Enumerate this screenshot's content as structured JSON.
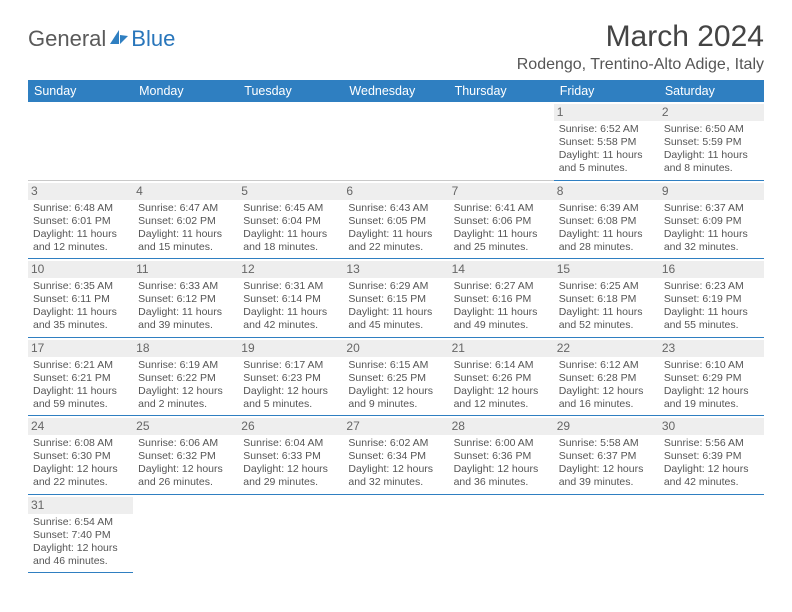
{
  "logo": {
    "general": "General",
    "blue": "Blue"
  },
  "title": "March 2024",
  "location": "Rodengo, Trentino-Alto Adige, Italy",
  "colors": {
    "header_bg": "#2f7fc1",
    "header_fg": "#ffffff",
    "row_border": "#2f7fc1",
    "empty_border": "#c9c9c9",
    "daynum_bg": "#eeeeee",
    "text": "#555555"
  },
  "dayHeaders": [
    "Sunday",
    "Monday",
    "Tuesday",
    "Wednesday",
    "Thursday",
    "Friday",
    "Saturday"
  ],
  "weeks": [
    [
      null,
      null,
      null,
      null,
      null,
      {
        "n": "1",
        "sunrise": "6:52 AM",
        "sunset": "5:58 PM",
        "daylight": "11 hours and 5 minutes."
      },
      {
        "n": "2",
        "sunrise": "6:50 AM",
        "sunset": "5:59 PM",
        "daylight": "11 hours and 8 minutes."
      }
    ],
    [
      {
        "n": "3",
        "sunrise": "6:48 AM",
        "sunset": "6:01 PM",
        "daylight": "11 hours and 12 minutes."
      },
      {
        "n": "4",
        "sunrise": "6:47 AM",
        "sunset": "6:02 PM",
        "daylight": "11 hours and 15 minutes."
      },
      {
        "n": "5",
        "sunrise": "6:45 AM",
        "sunset": "6:04 PM",
        "daylight": "11 hours and 18 minutes."
      },
      {
        "n": "6",
        "sunrise": "6:43 AM",
        "sunset": "6:05 PM",
        "daylight": "11 hours and 22 minutes."
      },
      {
        "n": "7",
        "sunrise": "6:41 AM",
        "sunset": "6:06 PM",
        "daylight": "11 hours and 25 minutes."
      },
      {
        "n": "8",
        "sunrise": "6:39 AM",
        "sunset": "6:08 PM",
        "daylight": "11 hours and 28 minutes."
      },
      {
        "n": "9",
        "sunrise": "6:37 AM",
        "sunset": "6:09 PM",
        "daylight": "11 hours and 32 minutes."
      }
    ],
    [
      {
        "n": "10",
        "sunrise": "6:35 AM",
        "sunset": "6:11 PM",
        "daylight": "11 hours and 35 minutes."
      },
      {
        "n": "11",
        "sunrise": "6:33 AM",
        "sunset": "6:12 PM",
        "daylight": "11 hours and 39 minutes."
      },
      {
        "n": "12",
        "sunrise": "6:31 AM",
        "sunset": "6:14 PM",
        "daylight": "11 hours and 42 minutes."
      },
      {
        "n": "13",
        "sunrise": "6:29 AM",
        "sunset": "6:15 PM",
        "daylight": "11 hours and 45 minutes."
      },
      {
        "n": "14",
        "sunrise": "6:27 AM",
        "sunset": "6:16 PM",
        "daylight": "11 hours and 49 minutes."
      },
      {
        "n": "15",
        "sunrise": "6:25 AM",
        "sunset": "6:18 PM",
        "daylight": "11 hours and 52 minutes."
      },
      {
        "n": "16",
        "sunrise": "6:23 AM",
        "sunset": "6:19 PM",
        "daylight": "11 hours and 55 minutes."
      }
    ],
    [
      {
        "n": "17",
        "sunrise": "6:21 AM",
        "sunset": "6:21 PM",
        "daylight": "11 hours and 59 minutes."
      },
      {
        "n": "18",
        "sunrise": "6:19 AM",
        "sunset": "6:22 PM",
        "daylight": "12 hours and 2 minutes."
      },
      {
        "n": "19",
        "sunrise": "6:17 AM",
        "sunset": "6:23 PM",
        "daylight": "12 hours and 5 minutes."
      },
      {
        "n": "20",
        "sunrise": "6:15 AM",
        "sunset": "6:25 PM",
        "daylight": "12 hours and 9 minutes."
      },
      {
        "n": "21",
        "sunrise": "6:14 AM",
        "sunset": "6:26 PM",
        "daylight": "12 hours and 12 minutes."
      },
      {
        "n": "22",
        "sunrise": "6:12 AM",
        "sunset": "6:28 PM",
        "daylight": "12 hours and 16 minutes."
      },
      {
        "n": "23",
        "sunrise": "6:10 AM",
        "sunset": "6:29 PM",
        "daylight": "12 hours and 19 minutes."
      }
    ],
    [
      {
        "n": "24",
        "sunrise": "6:08 AM",
        "sunset": "6:30 PM",
        "daylight": "12 hours and 22 minutes."
      },
      {
        "n": "25",
        "sunrise": "6:06 AM",
        "sunset": "6:32 PM",
        "daylight": "12 hours and 26 minutes."
      },
      {
        "n": "26",
        "sunrise": "6:04 AM",
        "sunset": "6:33 PM",
        "daylight": "12 hours and 29 minutes."
      },
      {
        "n": "27",
        "sunrise": "6:02 AM",
        "sunset": "6:34 PM",
        "daylight": "12 hours and 32 minutes."
      },
      {
        "n": "28",
        "sunrise": "6:00 AM",
        "sunset": "6:36 PM",
        "daylight": "12 hours and 36 minutes."
      },
      {
        "n": "29",
        "sunrise": "5:58 AM",
        "sunset": "6:37 PM",
        "daylight": "12 hours and 39 minutes."
      },
      {
        "n": "30",
        "sunrise": "5:56 AM",
        "sunset": "6:39 PM",
        "daylight": "12 hours and 42 minutes."
      }
    ],
    [
      {
        "n": "31",
        "sunrise": "6:54 AM",
        "sunset": "7:40 PM",
        "daylight": "12 hours and 46 minutes."
      },
      null,
      null,
      null,
      null,
      null,
      null
    ]
  ],
  "labels": {
    "sunrise": "Sunrise: ",
    "sunset": "Sunset: ",
    "daylight": "Daylight: "
  }
}
